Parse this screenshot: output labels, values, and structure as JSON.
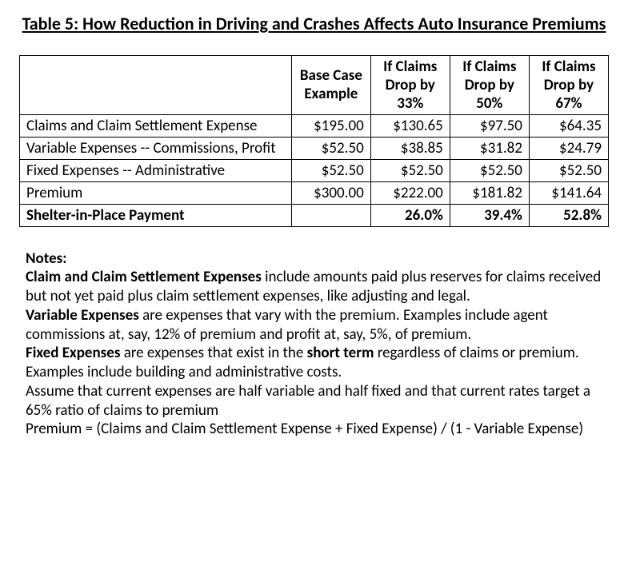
{
  "title": "Table 5: How Reduction in Driving and Crashes Affects Auto Insurance Premiums",
  "table": {
    "headers": {
      "col0": "",
      "col1": "Base Case Example",
      "col2": "If Claims Drop by 33%",
      "col3": "If Claims Drop by 50%",
      "col4": "If Claims Drop by 67%"
    },
    "rows": [
      {
        "label": "Claims and Claim Settlement Expense",
        "c1": "$195.00",
        "c2": "$130.65",
        "c3": "$97.50",
        "c4": "$64.35",
        "bold": false
      },
      {
        "label": "Variable Expenses -- Commissions, Profit",
        "c1": "$52.50",
        "c2": "$38.85",
        "c3": "$31.82",
        "c4": "$24.79",
        "bold": false
      },
      {
        "label": "Fixed Expenses -- Administrative",
        "c1": "$52.50",
        "c2": "$52.50",
        "c3": "$52.50",
        "c4": "$52.50",
        "bold": false
      },
      {
        "label": "Premium",
        "c1": "$300.00",
        "c2": "$222.00",
        "c3": "$181.82",
        "c4": "$141.64",
        "bold": false
      },
      {
        "label": "Shelter-in-Place Payment",
        "c1": "",
        "c2": "26.0%",
        "c3": "39.4%",
        "c4": "52.8%",
        "bold": true
      }
    ]
  },
  "notes": {
    "header": "Notes:",
    "n1_bold": "Claim and Claim Settlement Expenses",
    "n1_rest": " include amounts paid plus reserves for claims received but not yet paid plus claim settlement expenses, like adjusting and legal.",
    "n2_bold": "Variable Expenses",
    "n2_rest": " are expenses that vary with the premium.  Examples include agent commissions at, say, 12% of premium and profit at, say, 5%, of premium.",
    "n3_bold": "Fixed Expenses",
    "n3_mid1": " are expenses that exist in the ",
    "n3_bold2": "short term",
    "n3_rest": " regardless of claims or premium. Examples include building and administrative costs.",
    "n4": "Assume that current expenses are half variable and half fixed and that current rates target a 65% ratio of claims to premium",
    "n5": "Premium = (Claims and Claim Settlement Expense + Fixed Expense) / (1 - Variable Expense)"
  }
}
